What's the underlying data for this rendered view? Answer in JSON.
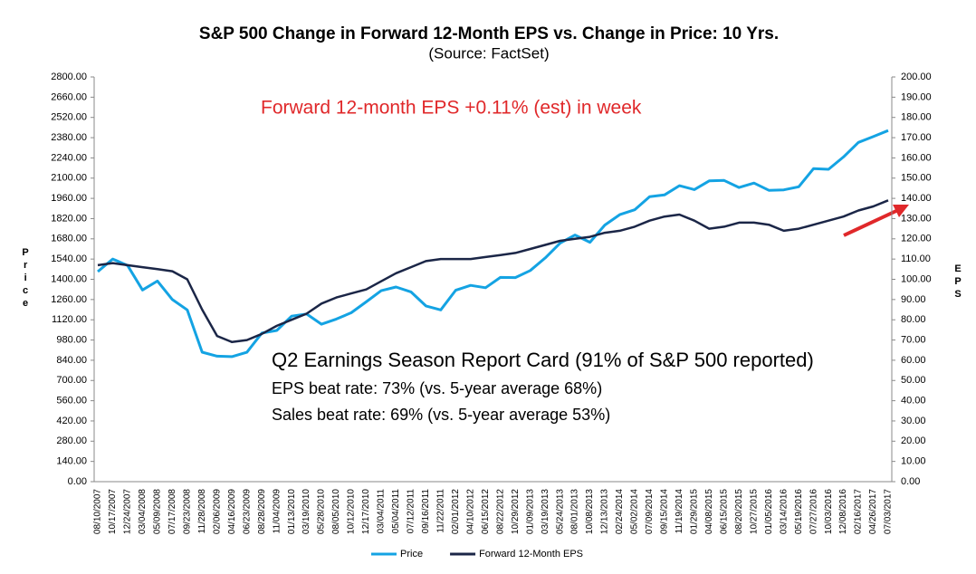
{
  "chart_data": {
    "type": "line",
    "title": "S&P 500 Change in Forward 12-Month EPS vs. Change in Price: 10 Yrs.",
    "subtitle": "(Source: FactSet)",
    "ylabel": "Price",
    "y2label": "EPS",
    "annotations": [
      "Forward 12-month EPS +0.11% (est) in week",
      "Q2 Earnings Season Report Card (91% of S&P 500 reported)",
      "EPS beat rate: 73% (vs. 5-year average 68%)",
      "Sales beat rate: 69% (vs. 5-year average 53%)"
    ],
    "categories": [
      "08/10/2007",
      "10/17/2007",
      "12/24/2007",
      "03/04/2008",
      "05/09/2008",
      "07/17/2008",
      "09/23/2008",
      "11/28/2008",
      "02/06/2009",
      "04/16/2009",
      "06/23/2009",
      "08/28/2009",
      "11/04/2009",
      "01/13/2010",
      "03/19/2010",
      "05/28/2010",
      "08/05/2010",
      "10/12/2010",
      "12/17/2010",
      "03/04/2011",
      "05/04/2011",
      "07/12/2011",
      "09/16/2011",
      "11/22/2011",
      "02/01/2012",
      "04/10/2012",
      "06/15/2012",
      "08/22/2012",
      "10/29/2012",
      "01/09/2013",
      "03/19/2013",
      "05/24/2013",
      "08/01/2013",
      "10/08/2013",
      "12/13/2013",
      "02/24/2014",
      "05/02/2014",
      "07/09/2014",
      "09/15/2014",
      "11/19/2014",
      "01/29/2015",
      "04/08/2015",
      "06/15/2015",
      "08/20/2015",
      "10/27/2015",
      "01/05/2016",
      "03/14/2016",
      "05/19/2016",
      "07/27/2016",
      "10/03/2016",
      "12/08/2016",
      "02/16/2017",
      "04/26/2017",
      "07/03/2017"
    ],
    "series": [
      {
        "name": "Price",
        "color": "#14a3e3",
        "axis": "y",
        "values": [
          1453,
          1540,
          1496,
          1326,
          1388,
          1260,
          1188,
          896,
          868,
          865,
          895,
          1028,
          1046,
          1145,
          1160,
          1089,
          1125,
          1169,
          1244,
          1321,
          1347,
          1313,
          1216,
          1188,
          1324,
          1358,
          1342,
          1413,
          1412,
          1461,
          1548,
          1650,
          1706,
          1656,
          1775,
          1847,
          1881,
          1972,
          1984,
          2048,
          2021,
          2081,
          2084,
          2035,
          2066,
          2016,
          2019,
          2040,
          2166,
          2161,
          2246,
          2347,
          2387,
          2429
        ]
      },
      {
        "name": "Forward 12-Month EPS",
        "color": "#1b2647",
        "axis": "y2",
        "values": [
          107,
          108,
          107,
          106,
          105,
          104,
          100,
          85,
          72,
          69,
          70,
          73,
          77,
          80,
          83,
          88,
          91,
          93,
          95,
          99,
          103,
          106,
          109,
          110,
          110,
          110,
          111,
          112,
          113,
          115,
          117,
          119,
          120,
          121,
          123,
          124,
          126,
          129,
          131,
          132,
          129,
          125,
          126,
          128,
          128,
          127,
          124,
          125,
          127,
          129,
          131,
          134,
          136,
          139
        ]
      }
    ],
    "ylim": [
      0,
      2800
    ],
    "yticks": [
      {
        "value": 0,
        "label": "0.00"
      },
      {
        "value": 140,
        "label": "140.00"
      },
      {
        "value": 280,
        "label": "280.00"
      },
      {
        "value": 420,
        "label": "420.00"
      },
      {
        "value": 560,
        "label": "560.00"
      },
      {
        "value": 700,
        "label": "700.00"
      },
      {
        "value": 840,
        "label": "840.00"
      },
      {
        "value": 980,
        "label": "980.00"
      },
      {
        "value": 1120,
        "label": "1120.00"
      },
      {
        "value": 1260,
        "label": "1260.00"
      },
      {
        "value": 1400,
        "label": "1400.00"
      },
      {
        "value": 1540,
        "label": "1540.00"
      },
      {
        "value": 1680,
        "label": "1680.00"
      },
      {
        "value": 1820,
        "label": "1820.00"
      },
      {
        "value": 1960,
        "label": "1960.00"
      },
      {
        "value": 2100,
        "label": "2100.00"
      },
      {
        "value": 2240,
        "label": "2240.00"
      },
      {
        "value": 2380,
        "label": "2380.00"
      },
      {
        "value": 2520,
        "label": "2520.00"
      },
      {
        "value": 2660,
        "label": "2660.00"
      },
      {
        "value": 2800,
        "label": "2800.00"
      }
    ],
    "y2lim": [
      0,
      200
    ],
    "y2ticks": [
      {
        "value": 0,
        "label": "0.00"
      },
      {
        "value": 10,
        "label": "10.00"
      },
      {
        "value": 20,
        "label": "20.00"
      },
      {
        "value": 30,
        "label": "30.00"
      },
      {
        "value": 40,
        "label": "40.00"
      },
      {
        "value": 50,
        "label": "50.00"
      },
      {
        "value": 60,
        "label": "60.00"
      },
      {
        "value": 70,
        "label": "70.00"
      },
      {
        "value": 80,
        "label": "80.00"
      },
      {
        "value": 90,
        "label": "90.00"
      },
      {
        "value": 100,
        "label": "100.00"
      },
      {
        "value": 110,
        "label": "110.00"
      },
      {
        "value": 120,
        "label": "120.00"
      },
      {
        "value": 130,
        "label": "130.00"
      },
      {
        "value": 140,
        "label": "140.00"
      },
      {
        "value": 150,
        "label": "150.00"
      },
      {
        "value": 160,
        "label": "160.00"
      },
      {
        "value": 170,
        "label": "170.00"
      },
      {
        "value": 180,
        "label": "180.00"
      },
      {
        "value": 190,
        "label": "190.00"
      },
      {
        "value": 200,
        "label": "200.00"
      }
    ],
    "grid": false,
    "legend": "bottom"
  }
}
